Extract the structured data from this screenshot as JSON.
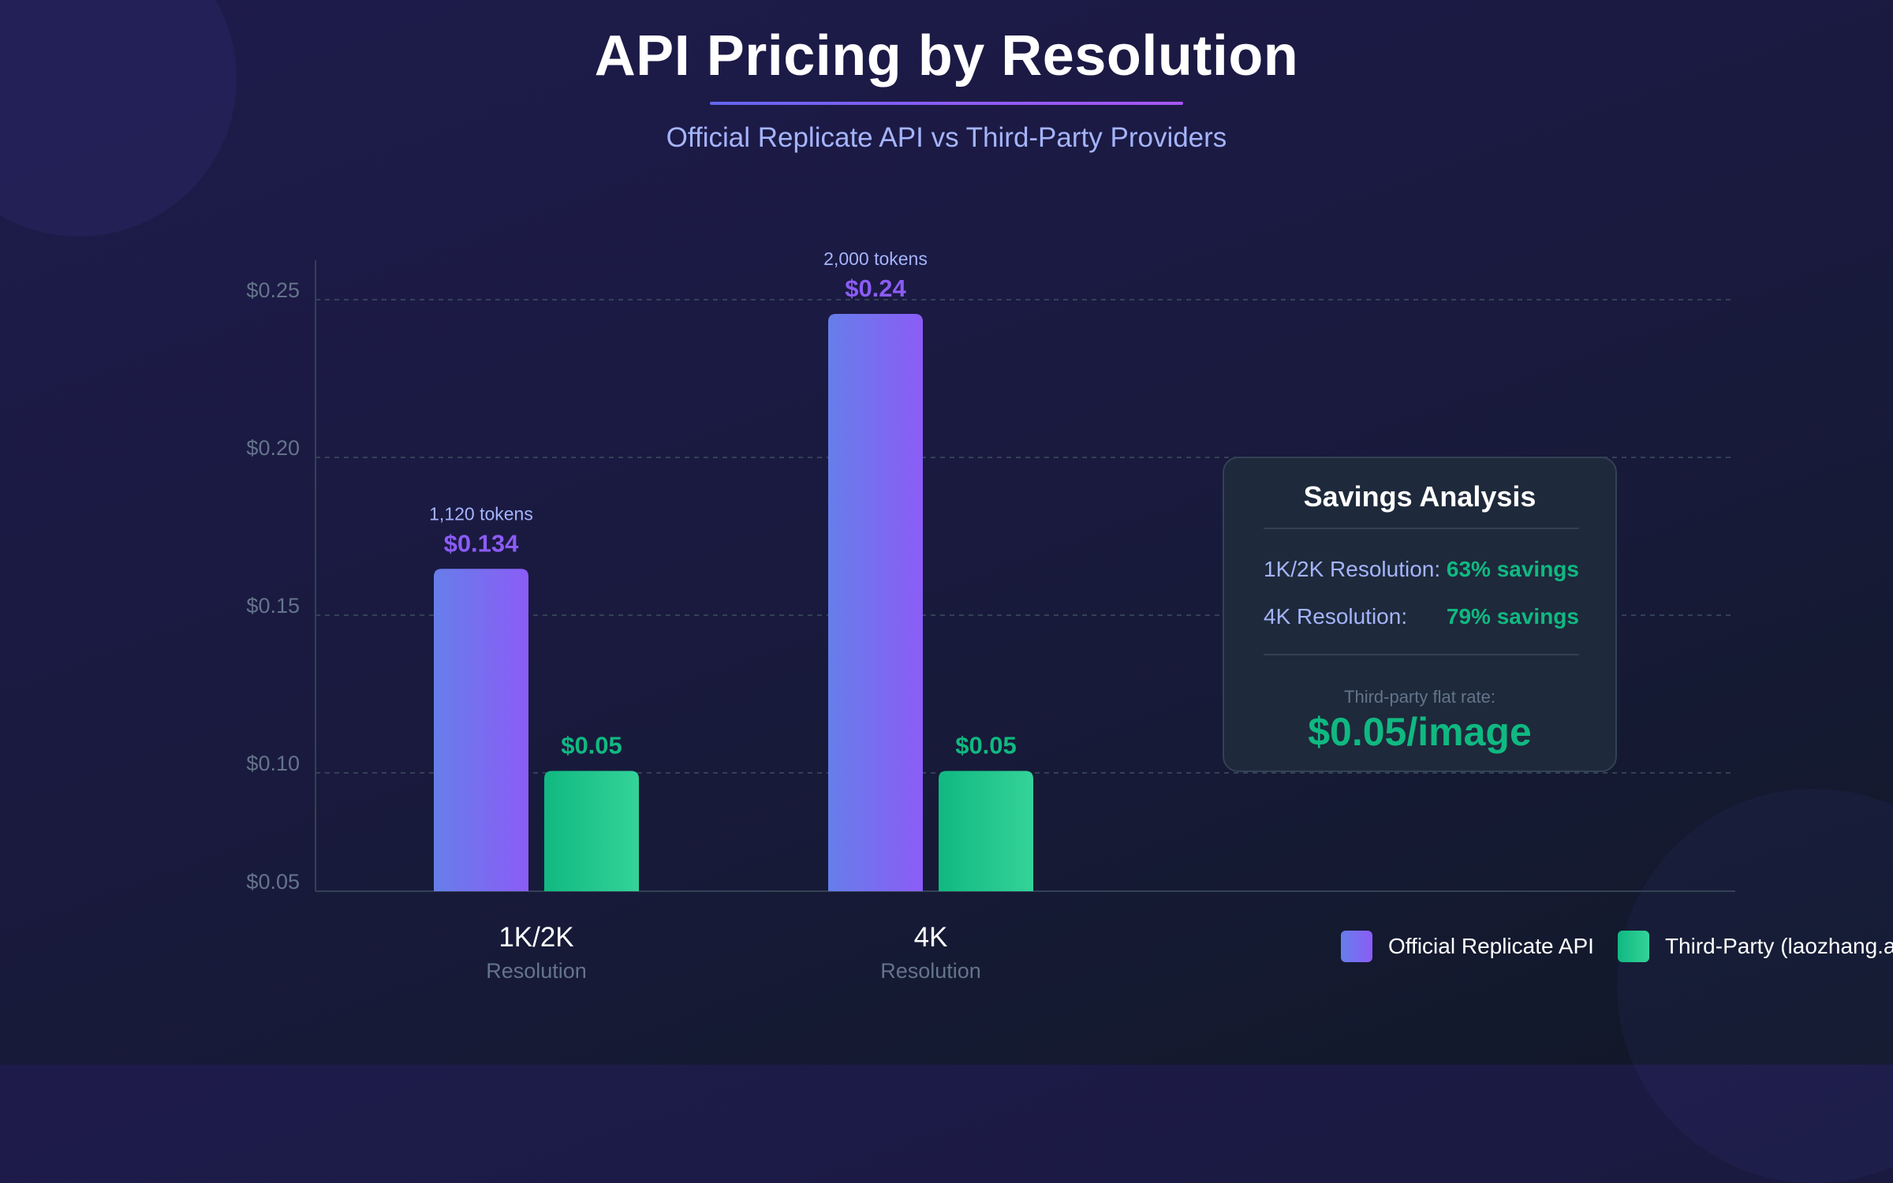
{
  "header": {
    "title": "API Pricing by Resolution",
    "subtitle": "Official Replicate API vs Third-Party Providers"
  },
  "chart_data": {
    "type": "bar",
    "title": "API Pricing by Resolution",
    "subtitle": "Official Replicate API vs Third-Party Providers",
    "xlabel": "",
    "ylabel": "",
    "categories": [
      "1K/2K",
      "4K"
    ],
    "category_sublabels": [
      "Resolution",
      "Resolution"
    ],
    "y_ticks": [
      "$0.25",
      "$0.20",
      "$0.15",
      "$0.10",
      "$0.05"
    ],
    "y_tick_values": [
      0.25,
      0.2,
      0.15,
      0.1,
      0.05
    ],
    "ylim": [
      0.05,
      0.26
    ],
    "grid": true,
    "legend_position": "bottom-right",
    "series": [
      {
        "name": "Official Replicate API",
        "values": [
          0.134,
          0.24
        ],
        "value_labels": [
          "$0.134",
          "$0.24"
        ],
        "annotations": [
          "1,120 tokens",
          "2,000 tokens"
        ],
        "color": "#8b5cf6",
        "gradient": [
          "#667eea",
          "#8b5cf6"
        ]
      },
      {
        "name": "Third-Party (laozhang.a",
        "values": [
          0.05,
          0.05
        ],
        "value_labels": [
          "$0.05",
          "$0.05"
        ],
        "annotations": [
          "",
          ""
        ],
        "color": "#10b981",
        "gradient": [
          "#10b981",
          "#34d399"
        ]
      }
    ]
  },
  "savings": {
    "title": "Savings Analysis",
    "rows": [
      {
        "label": "1K/2K Resolution:",
        "value": "63% savings"
      },
      {
        "label": "4K Resolution:",
        "value": "79% savings"
      }
    ],
    "flat_rate_label": "Third-party flat rate:",
    "flat_rate_value": "$0.05/image"
  },
  "legend": {
    "items": [
      {
        "label": "Official Replicate API",
        "color": "#8b5cf6"
      },
      {
        "label": "Third-Party (laozhang.a",
        "color": "#10b981"
      }
    ]
  },
  "colors": {
    "accent_purple": "#8b5cf6",
    "accent_green": "#10b981",
    "subtitle": "#a5b4fc",
    "muted": "#64748b"
  }
}
